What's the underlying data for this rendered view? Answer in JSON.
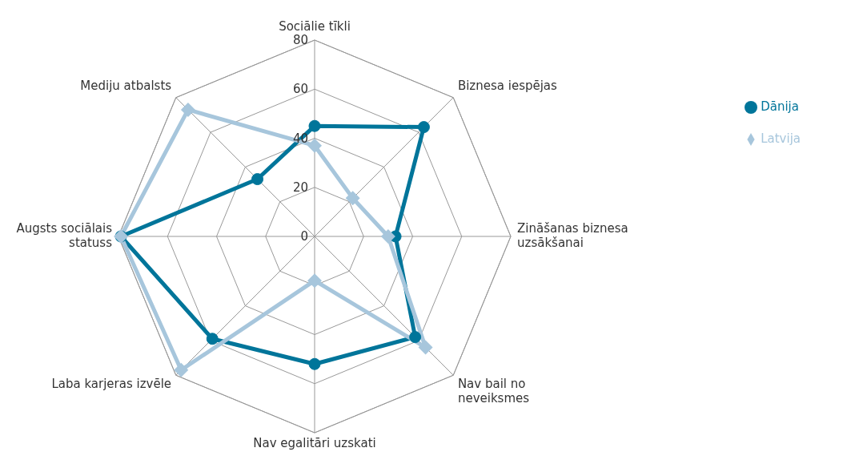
{
  "chart_data": {
    "type": "radar",
    "categories": [
      "Sociālie tīkli",
      "Biznesa iespējas",
      "Zināšanas biznesa uzsākšanai",
      "Nav bail no neveiksmes",
      "Nav egalitāri uzskati",
      "Laba karjeras izvēle",
      "Augsts sociālais statuss",
      "Mediju atbalsts"
    ],
    "series": [
      {
        "name": "Dānija",
        "color": "#00759a",
        "marker": "circle",
        "values": [
          45,
          63,
          33,
          58,
          52,
          59,
          79,
          33
        ]
      },
      {
        "name": "Latvija",
        "color": "#a7c6dc",
        "marker": "diamond",
        "values": [
          37,
          22,
          30,
          64,
          18,
          77,
          79,
          73
        ]
      }
    ],
    "ylim": [
      0,
      80
    ],
    "yticks": [
      0,
      20,
      40,
      60,
      80
    ],
    "grid": true,
    "legend": "top right"
  }
}
